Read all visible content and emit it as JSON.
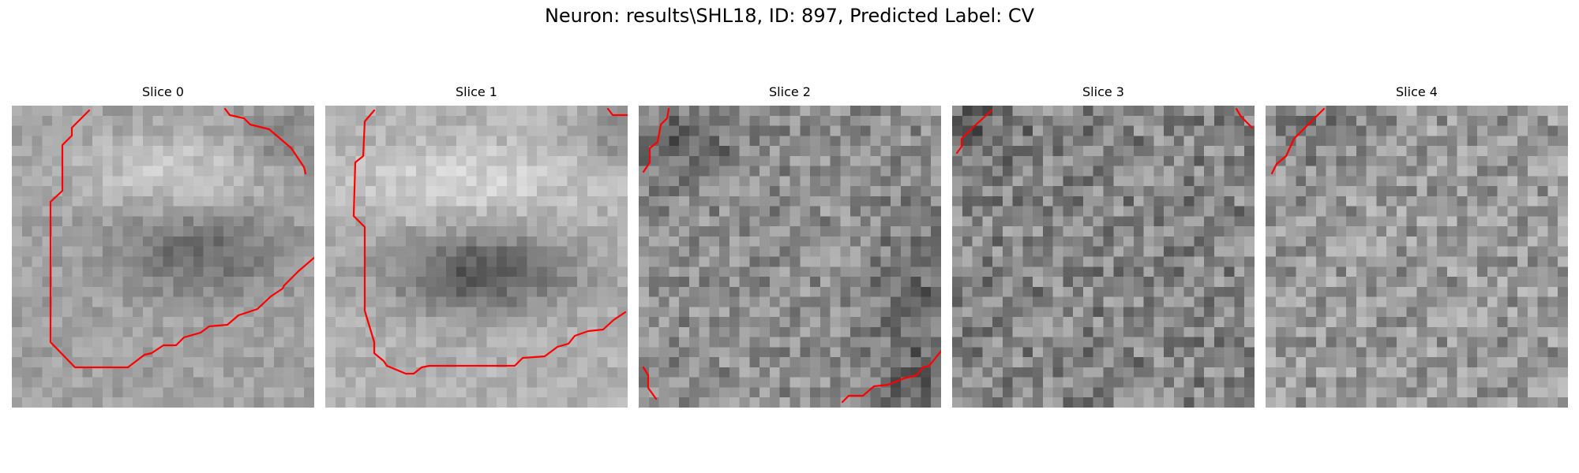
{
  "figure": {
    "title": "Neuron: results\\SHL18, ID: 897, Predicted Label: CV",
    "contour_color": "#ff0000",
    "colormap": "gray"
  },
  "slices": [
    {
      "label": "Slice 0"
    },
    {
      "label": "Slice 1"
    },
    {
      "label": "Slice 2"
    },
    {
      "label": "Slice 3"
    },
    {
      "label": "Slice 4"
    }
  ]
}
